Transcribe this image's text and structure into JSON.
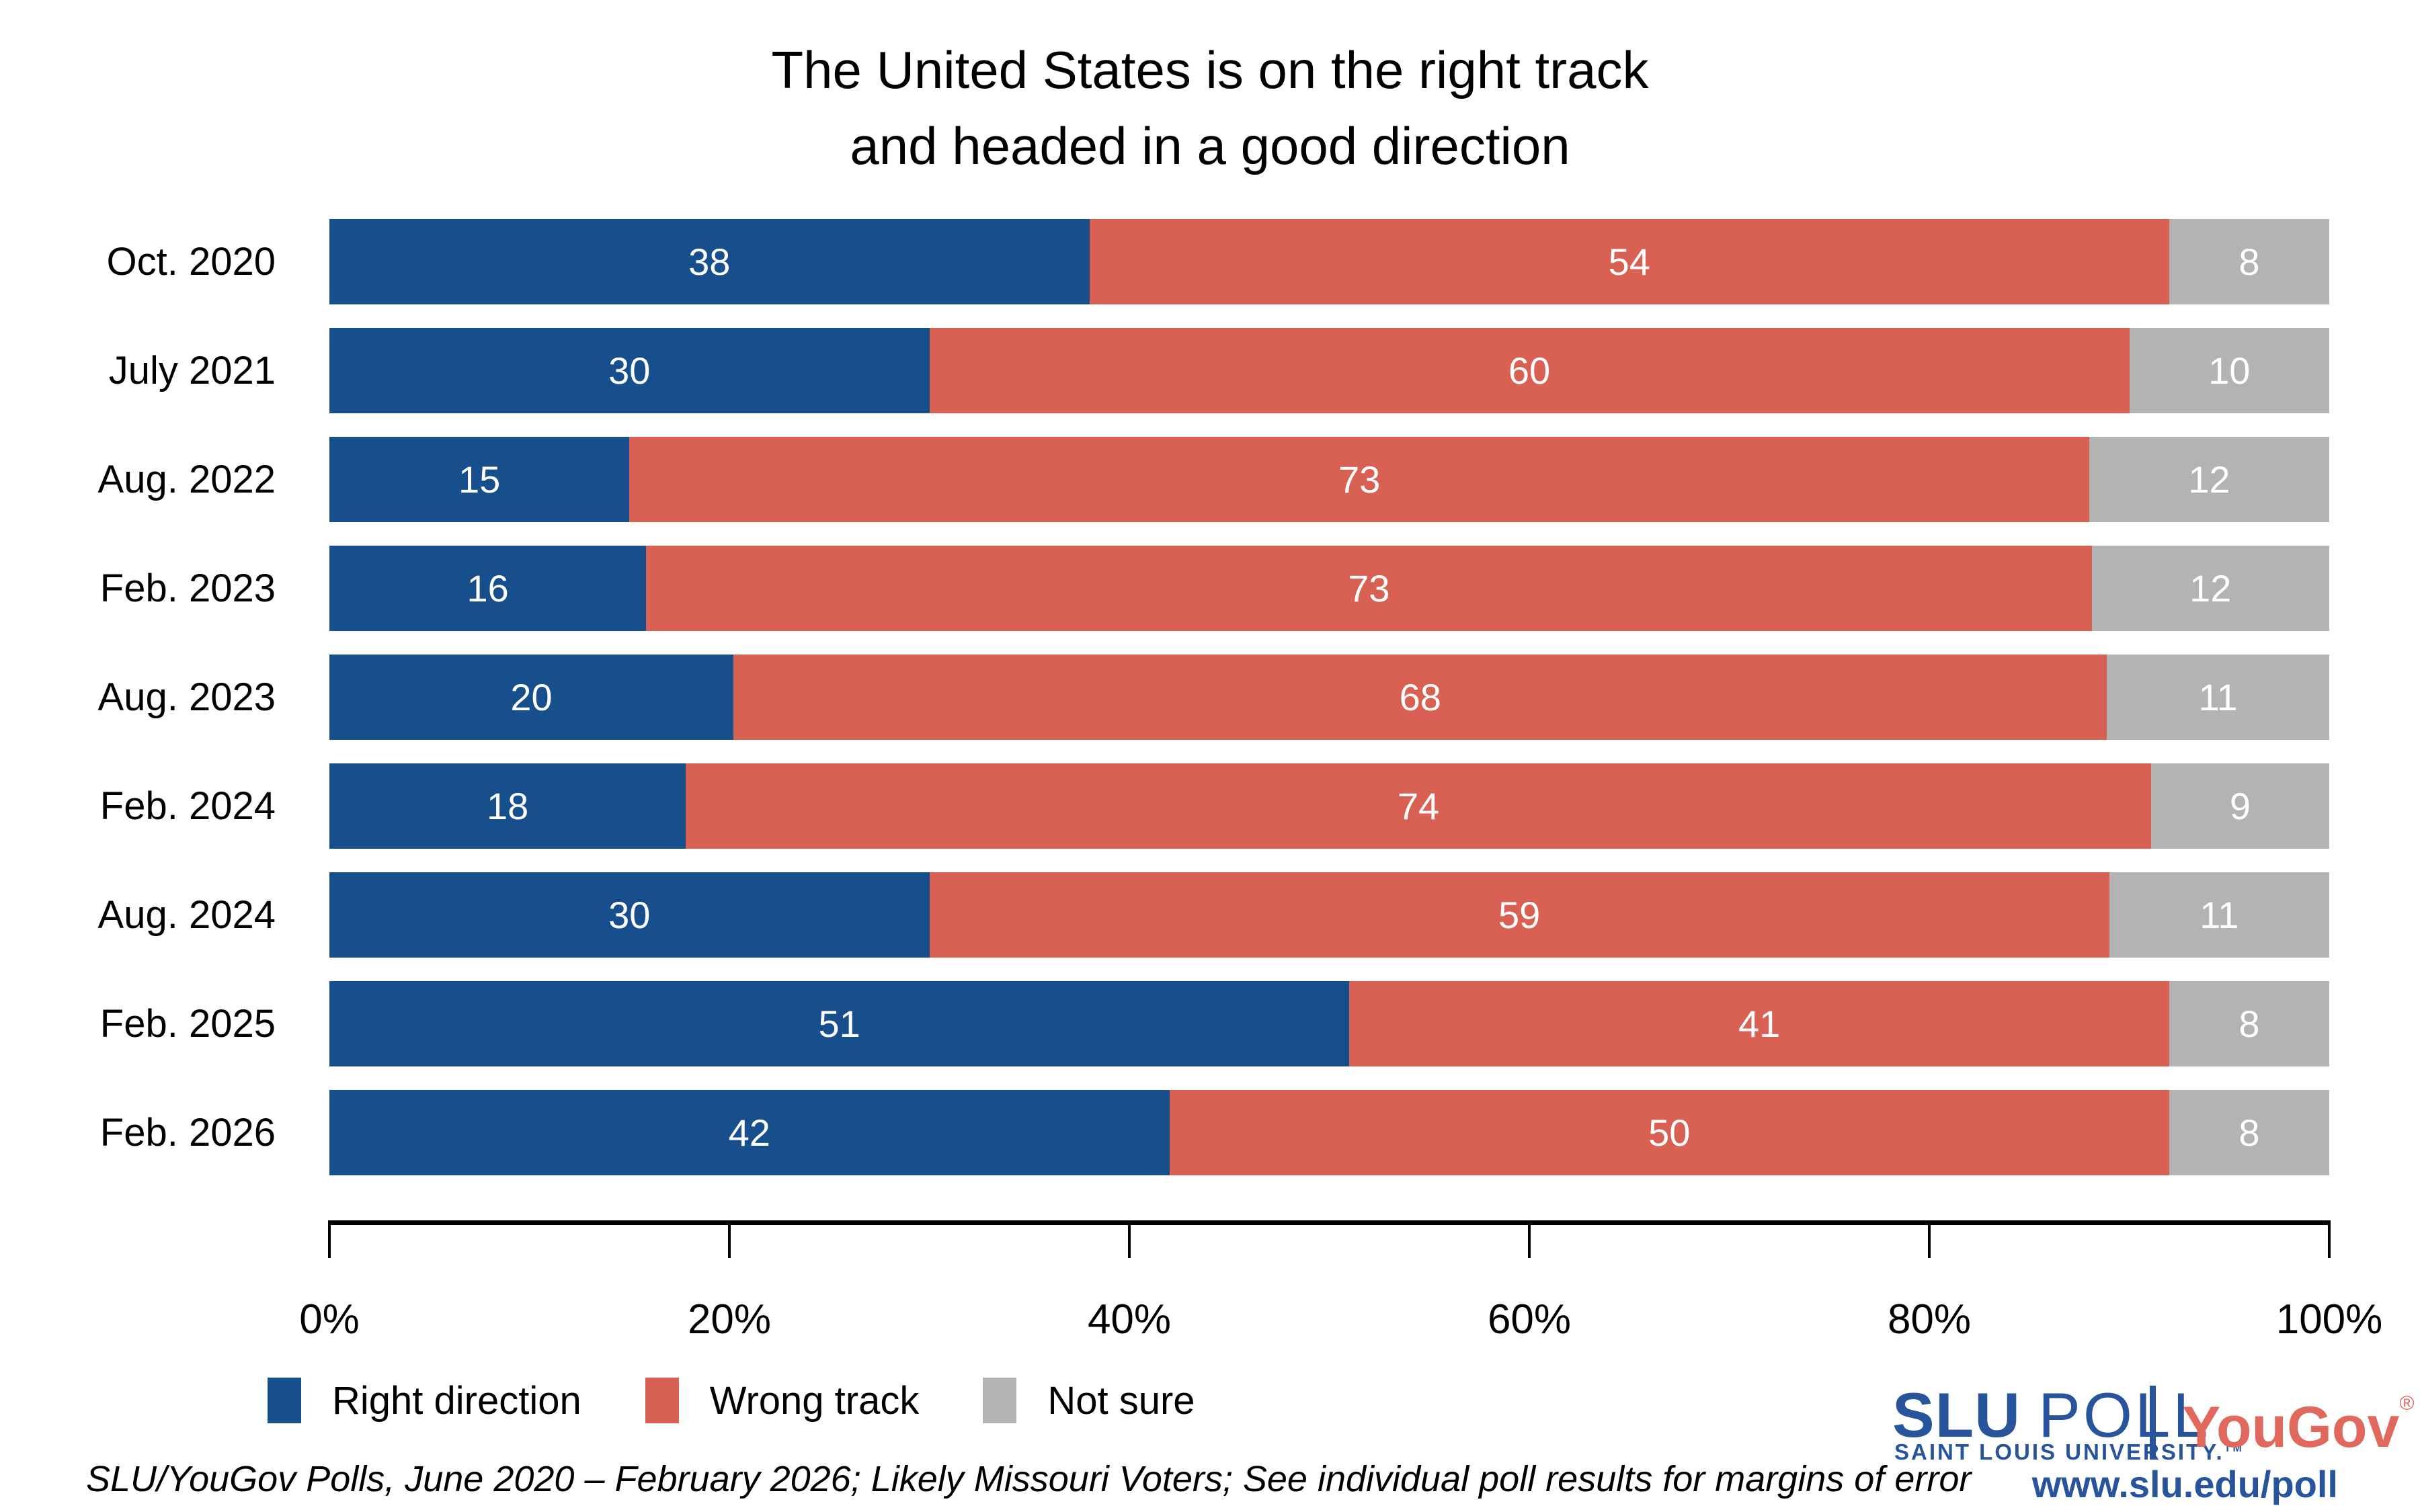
{
  "title": {
    "line1": "The United States is on the right track",
    "line2": "and headed in a good direction"
  },
  "chart_data": {
    "type": "bar",
    "orientation": "horizontal_stacked",
    "title": "The United States is on the right track and headed in a good direction",
    "categories": [
      "Oct. 2020",
      "July 2021",
      "Aug. 2022",
      "Feb. 2023",
      "Aug. 2023",
      "Feb. 2024",
      "Aug. 2024",
      "Feb. 2025",
      "Feb. 2026"
    ],
    "series": [
      {
        "name": "Right direction",
        "color": "#164F8C",
        "values": [
          38,
          30,
          15,
          16,
          20,
          18,
          30,
          51,
          42
        ]
      },
      {
        "name": "Wrong track",
        "color": "#D96153",
        "values": [
          54,
          60,
          73,
          73,
          68,
          74,
          59,
          41,
          50
        ]
      },
      {
        "name": "Not sure",
        "color": "#B3B3B3",
        "values": [
          8,
          10,
          12,
          12,
          11,
          9,
          11,
          8,
          8
        ]
      }
    ],
    "x_ticks": [
      "0%",
      "20%",
      "40%",
      "60%",
      "80%",
      "100%"
    ],
    "xlim": [
      0,
      100
    ],
    "xlabel": "",
    "ylabel": "",
    "grid": false,
    "legend_position": "bottom-left",
    "value_labels": "centered-white"
  },
  "legend": {
    "items": [
      {
        "label": "Right direction",
        "color": "#164F8C"
      },
      {
        "label": "Wrong track",
        "color": "#D96153"
      },
      {
        "label": "Not sure",
        "color": "#B3B3B3"
      }
    ]
  },
  "footer": {
    "source_note": "SLU/YouGov Polls, June 2020 – February 2026; Likely Missouri Voters; See individual poll results for margins of error"
  },
  "branding": {
    "slu": "SLU",
    "poll": "POLL",
    "slu_sub": "SAINT LOUIS UNIVERSITY.",
    "tm": "TM",
    "yougov": "YouGov",
    "reg": "®",
    "url": "www.slu.edu/poll",
    "slu_blue": "#27549B",
    "yougov_red": "#E0685C"
  }
}
